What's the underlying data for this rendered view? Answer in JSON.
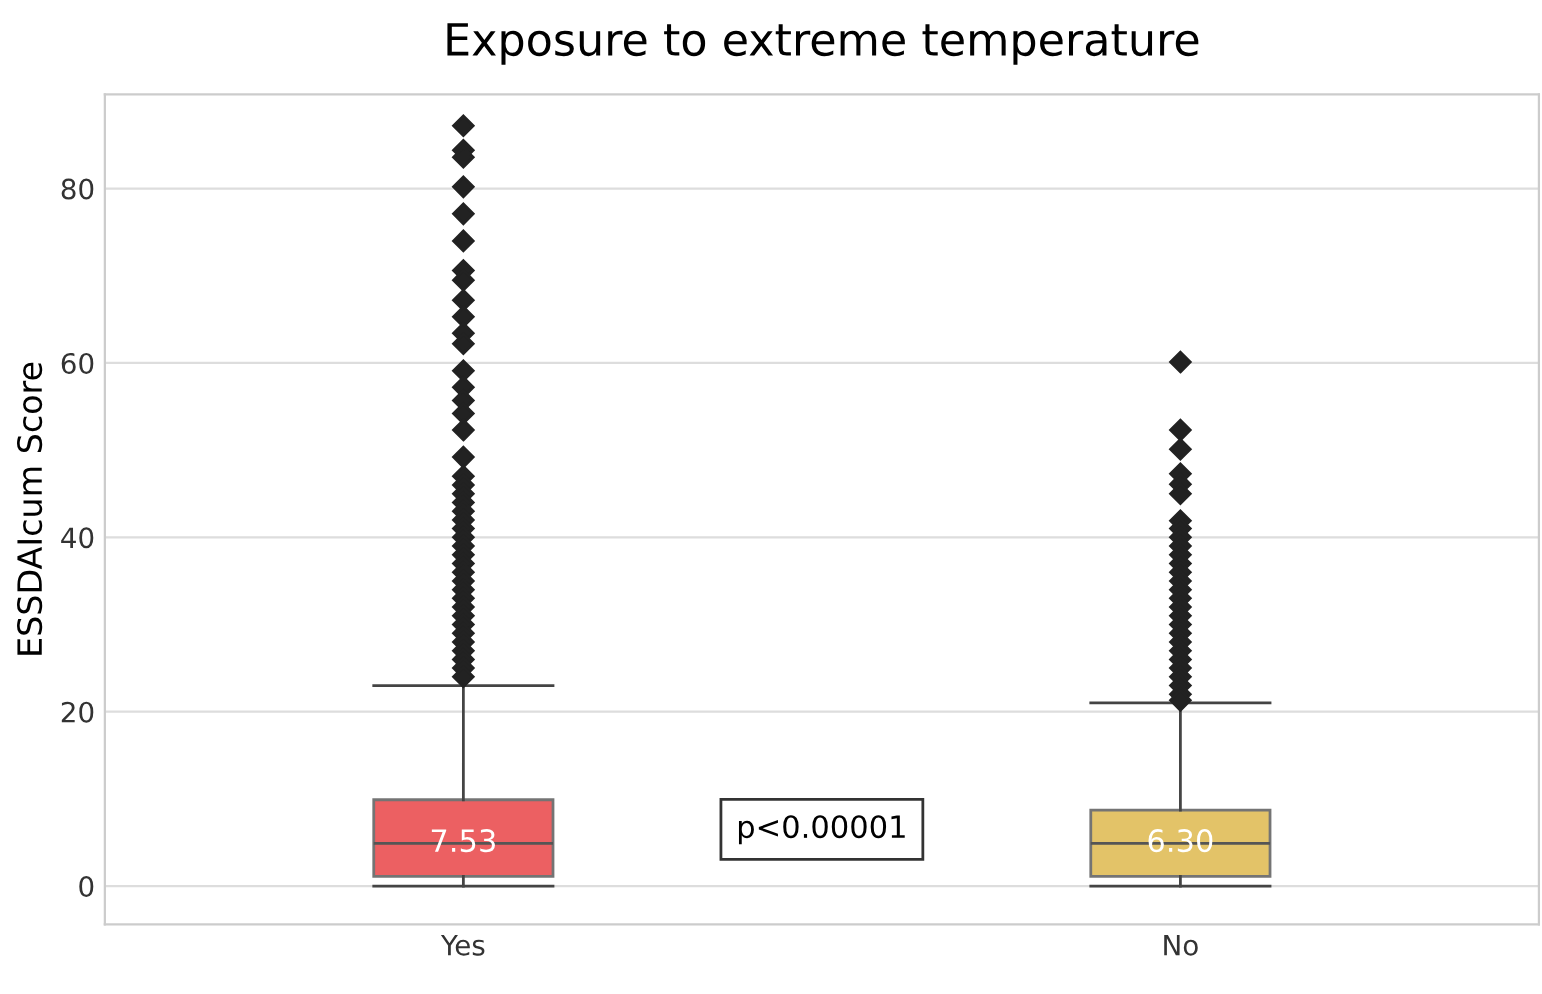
{
  "chart_data": {
    "type": "box",
    "title": "Exposure to extreme temperature",
    "ylabel": "ESSDAIcum Score",
    "categories": [
      "Yes",
      "No"
    ],
    "colors": [
      "#ea4f52",
      "#e0bd58"
    ],
    "boxes": [
      {
        "low": 0,
        "q1": 1.1,
        "median": 4.9,
        "q3": 9.9,
        "high": 23,
        "outliers": [
          87.2,
          84.4,
          83.6,
          80.2,
          77.1,
          74.0,
          70.6,
          69.5,
          67.2,
          65.3,
          63.4,
          62.2,
          59.1,
          57.2,
          55.7,
          54.2,
          52.3,
          49.2,
          47,
          46,
          45,
          44,
          43,
          42,
          41,
          40,
          39,
          38,
          37,
          36,
          35,
          34,
          33,
          32,
          31,
          30,
          29,
          28,
          27,
          26,
          25,
          24
        ]
      },
      {
        "low": 0,
        "q1": 1.1,
        "median": 4.9,
        "q3": 8.7,
        "high": 21,
        "outliers": [
          60.1,
          52.3,
          50.1,
          47.3,
          46.1,
          45,
          41.9,
          41,
          40,
          39,
          38,
          37,
          36,
          35,
          34,
          33,
          32,
          31,
          30,
          29,
          28,
          27,
          26,
          25,
          24,
          23,
          22,
          21.3
        ]
      }
    ],
    "annotations": [
      "7.53",
      "6.30",
      "p<0.00001"
    ],
    "ylim": [
      -4.4,
      90.8
    ],
    "yticks": [
      0,
      20,
      40,
      60,
      80
    ],
    "grid": "y",
    "marker": "diamond"
  }
}
